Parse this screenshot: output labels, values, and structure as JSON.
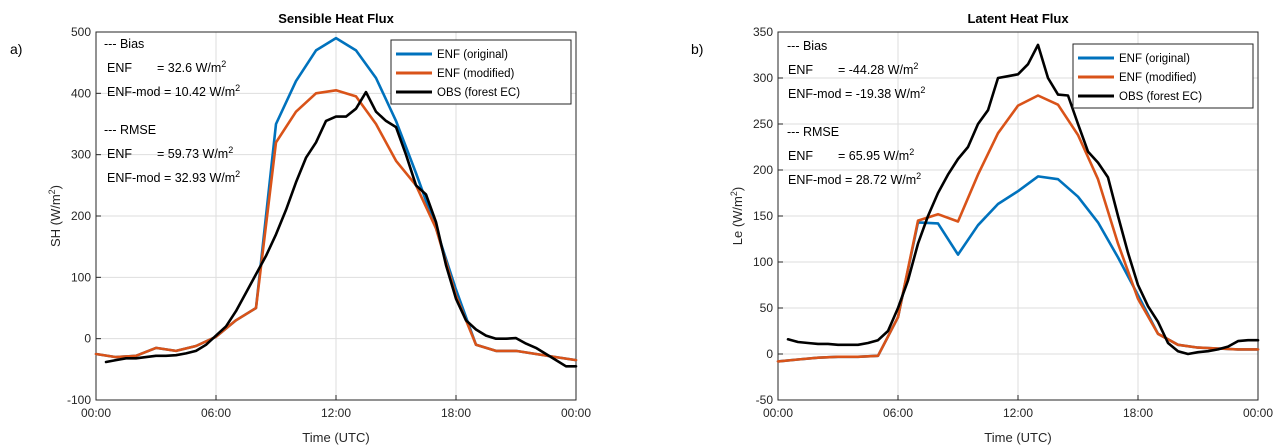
{
  "chart_data": [
    {
      "type": "line",
      "panel_label": "a)",
      "title": "Sensible Heat Flux",
      "xlabel": "Time (UTC)",
      "ylabel_main": "SH (W/m",
      "ylabel_sup": "2",
      "ylabel_end": ")",
      "xlim": [
        0,
        24
      ],
      "ylim": [
        -100,
        500
      ],
      "xticks": [
        0,
        6,
        12,
        18,
        24
      ],
      "xtick_labels": [
        "00:00",
        "06:00",
        "12:00",
        "18:00",
        "00:00"
      ],
      "yticks": [
        -100,
        0,
        100,
        200,
        300,
        400,
        500
      ],
      "ytick_labels": [
        "-100",
        "0",
        "100",
        "200",
        "300",
        "400",
        "500"
      ],
      "grid": true,
      "legend": [
        "ENF (original)",
        "ENF (modified)",
        "OBS (forest EC)"
      ],
      "legend_position": "top-right",
      "series": [
        {
          "name": "ENF (original)",
          "color": "#0072BD",
          "x": [
            0,
            1,
            2,
            3,
            4,
            5,
            6,
            7,
            8,
            9,
            10,
            11,
            12,
            13,
            14,
            15,
            16,
            17,
            18,
            19,
            20,
            21,
            22,
            23,
            24
          ],
          "y": [
            -25,
            -30,
            -28,
            -15,
            -20,
            -12,
            3,
            30,
            50,
            350,
            420,
            470,
            490,
            470,
            425,
            355,
            270,
            180,
            80,
            -10,
            -20,
            -20,
            -25,
            -30,
            -35
          ]
        },
        {
          "name": "ENF (modified)",
          "color": "#D95319",
          "x": [
            0,
            1,
            2,
            3,
            4,
            5,
            6,
            7,
            8,
            9,
            10,
            11,
            12,
            13,
            14,
            15,
            16,
            17,
            18,
            19,
            20,
            21,
            22,
            23,
            24
          ],
          "y": [
            -25,
            -30,
            -28,
            -15,
            -20,
            -12,
            3,
            30,
            50,
            320,
            370,
            400,
            405,
            395,
            350,
            290,
            250,
            180,
            70,
            -10,
            -20,
            -20,
            -25,
            -30,
            -35
          ]
        },
        {
          "name": "OBS (forest EC)",
          "color": "#000000",
          "x": [
            0.5,
            1,
            1.5,
            2,
            2.5,
            3,
            3.5,
            4,
            4.5,
            5,
            5.5,
            6,
            6.5,
            7,
            7.5,
            8,
            8.5,
            9,
            9.5,
            10,
            10.5,
            11,
            11.5,
            12,
            12.5,
            13,
            13.5,
            14,
            14.5,
            15,
            15.5,
            16,
            16.5,
            17,
            17.5,
            18,
            18.5,
            19,
            19.5,
            20,
            20.5,
            21,
            21.5,
            22,
            22.5,
            23,
            23.5,
            24
          ],
          "y": [
            -38,
            -35,
            -32,
            -32,
            -30,
            -28,
            -28,
            -27,
            -24,
            -20,
            -10,
            5,
            20,
            45,
            75,
            105,
            135,
            170,
            210,
            255,
            295,
            320,
            355,
            362,
            362,
            375,
            402,
            370,
            355,
            345,
            300,
            250,
            235,
            190,
            120,
            65,
            30,
            15,
            5,
            0,
            0,
            1,
            -8,
            -15,
            -25,
            -35,
            -45,
            -45
          ]
        }
      ],
      "annotations": {
        "bias_header": "--- Bias",
        "bias_enf_label": "ENF",
        "bias_enf_value": "= 32.6 W/m",
        "bias_mod_text": "ENF-mod = 10.42 W/m",
        "rmse_header": "--- RMSE",
        "rmse_enf_label": "ENF",
        "rmse_enf_value": "= 59.73 W/m",
        "rmse_mod_text": "ENF-mod = 32.93 W/m",
        "sup": "2"
      }
    },
    {
      "type": "line",
      "panel_label": "b)",
      "title": "Latent Heat Flux",
      "xlabel": "Time (UTC)",
      "ylabel_main": "Le (W/m",
      "ylabel_sup": "2",
      "ylabel_end": ")",
      "xlim": [
        0,
        24
      ],
      "ylim": [
        -50,
        350
      ],
      "xticks": [
        0,
        6,
        12,
        18,
        24
      ],
      "xtick_labels": [
        "00:00",
        "06:00",
        "12:00",
        "18:00",
        "00:00"
      ],
      "yticks": [
        -50,
        0,
        50,
        100,
        150,
        200,
        250,
        300,
        350
      ],
      "ytick_labels": [
        "-50",
        "0",
        "50",
        "100",
        "150",
        "200",
        "250",
        "300",
        "350"
      ],
      "grid": true,
      "legend": [
        "ENF (original)",
        "ENF (modified)",
        "OBS (forest EC)"
      ],
      "legend_position": "top-right",
      "series": [
        {
          "name": "ENF (original)",
          "color": "#0072BD",
          "x": [
            0,
            1,
            2,
            3,
            4,
            5,
            6,
            7,
            8,
            9,
            10,
            11,
            12,
            13,
            14,
            15,
            16,
            17,
            18,
            19,
            20,
            21,
            22,
            23,
            24
          ],
          "y": [
            -8,
            -6,
            -4,
            -3,
            -3,
            -2,
            40,
            143,
            142,
            108,
            140,
            163,
            177,
            193,
            190,
            171,
            143,
            105,
            64,
            22,
            10,
            7,
            6,
            5,
            5
          ]
        },
        {
          "name": "ENF (modified)",
          "color": "#D95319",
          "x": [
            0,
            1,
            2,
            3,
            4,
            5,
            6,
            7,
            8,
            9,
            10,
            11,
            12,
            13,
            14,
            15,
            16,
            17,
            18,
            19,
            20,
            21,
            22,
            23,
            24
          ],
          "y": [
            -8,
            -6,
            -4,
            -3,
            -3,
            -2,
            40,
            145,
            152,
            144,
            195,
            240,
            270,
            281,
            271,
            238,
            190,
            120,
            60,
            22,
            10,
            7,
            6,
            5,
            5
          ]
        },
        {
          "name": "OBS (forest EC)",
          "color": "#000000",
          "x": [
            0.5,
            1,
            1.5,
            2,
            2.5,
            3,
            3.5,
            4,
            4.5,
            5,
            5.5,
            6,
            6.5,
            7,
            7.5,
            8,
            8.5,
            9,
            9.5,
            10,
            10.5,
            11,
            11.5,
            12,
            12.5,
            13,
            13.5,
            14,
            14.5,
            15,
            15.5,
            16,
            16.5,
            17,
            17.5,
            18,
            18.5,
            19,
            19.5,
            20,
            20.5,
            21,
            21.5,
            22,
            22.5,
            23,
            23.5,
            24
          ],
          "y": [
            16,
            13,
            12,
            11,
            11,
            10,
            10,
            10,
            12,
            15,
            25,
            50,
            80,
            120,
            150,
            175,
            195,
            212,
            225,
            250,
            265,
            300,
            302,
            304,
            315,
            336,
            300,
            282,
            281,
            250,
            220,
            208,
            192,
            150,
            110,
            75,
            52,
            35,
            12,
            3,
            0,
            2,
            3,
            5,
            8,
            14,
            15,
            15
          ]
        }
      ],
      "annotations": {
        "bias_header": "--- Bias",
        "bias_enf_label": "ENF",
        "bias_enf_value": "= -44.28 W/m",
        "bias_mod_text": "ENF-mod = -19.38 W/m",
        "rmse_header": "--- RMSE",
        "rmse_enf_label": "ENF",
        "rmse_enf_value": "= 65.95 W/m",
        "rmse_mod_text": "ENF-mod = 28.72 W/m",
        "sup": "2"
      }
    }
  ]
}
